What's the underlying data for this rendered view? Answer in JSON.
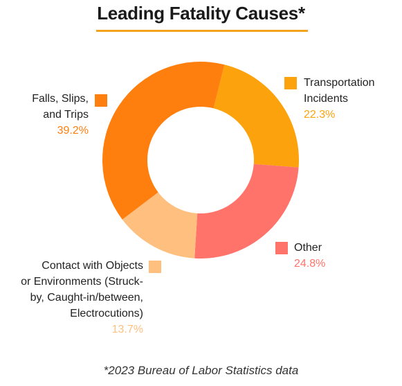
{
  "chart_data": {
    "type": "pie",
    "title": "Leading Fatality Causes*",
    "note": "*2023 Bureau of Labor Statistics data",
    "legend_placement": "around-chart",
    "slices": [
      {
        "label": "Transportation Incidents",
        "value": 22.3,
        "pct_text": "22.3%",
        "color": "#fca20d"
      },
      {
        "label": "Other",
        "value": 24.8,
        "pct_text": "24.8%",
        "color": "#ff736b"
      },
      {
        "label": "Contact with Objects or Environments (Struck-by, Caught-in/between, Electrocutions)",
        "value": 13.7,
        "pct_text": "13.7%",
        "color": "#ffbf7e"
      },
      {
        "label": "Falls, Slips, and Trips",
        "value": 39.2,
        "pct_text": "39.2%",
        "color": "#ff7f0e"
      }
    ]
  }
}
